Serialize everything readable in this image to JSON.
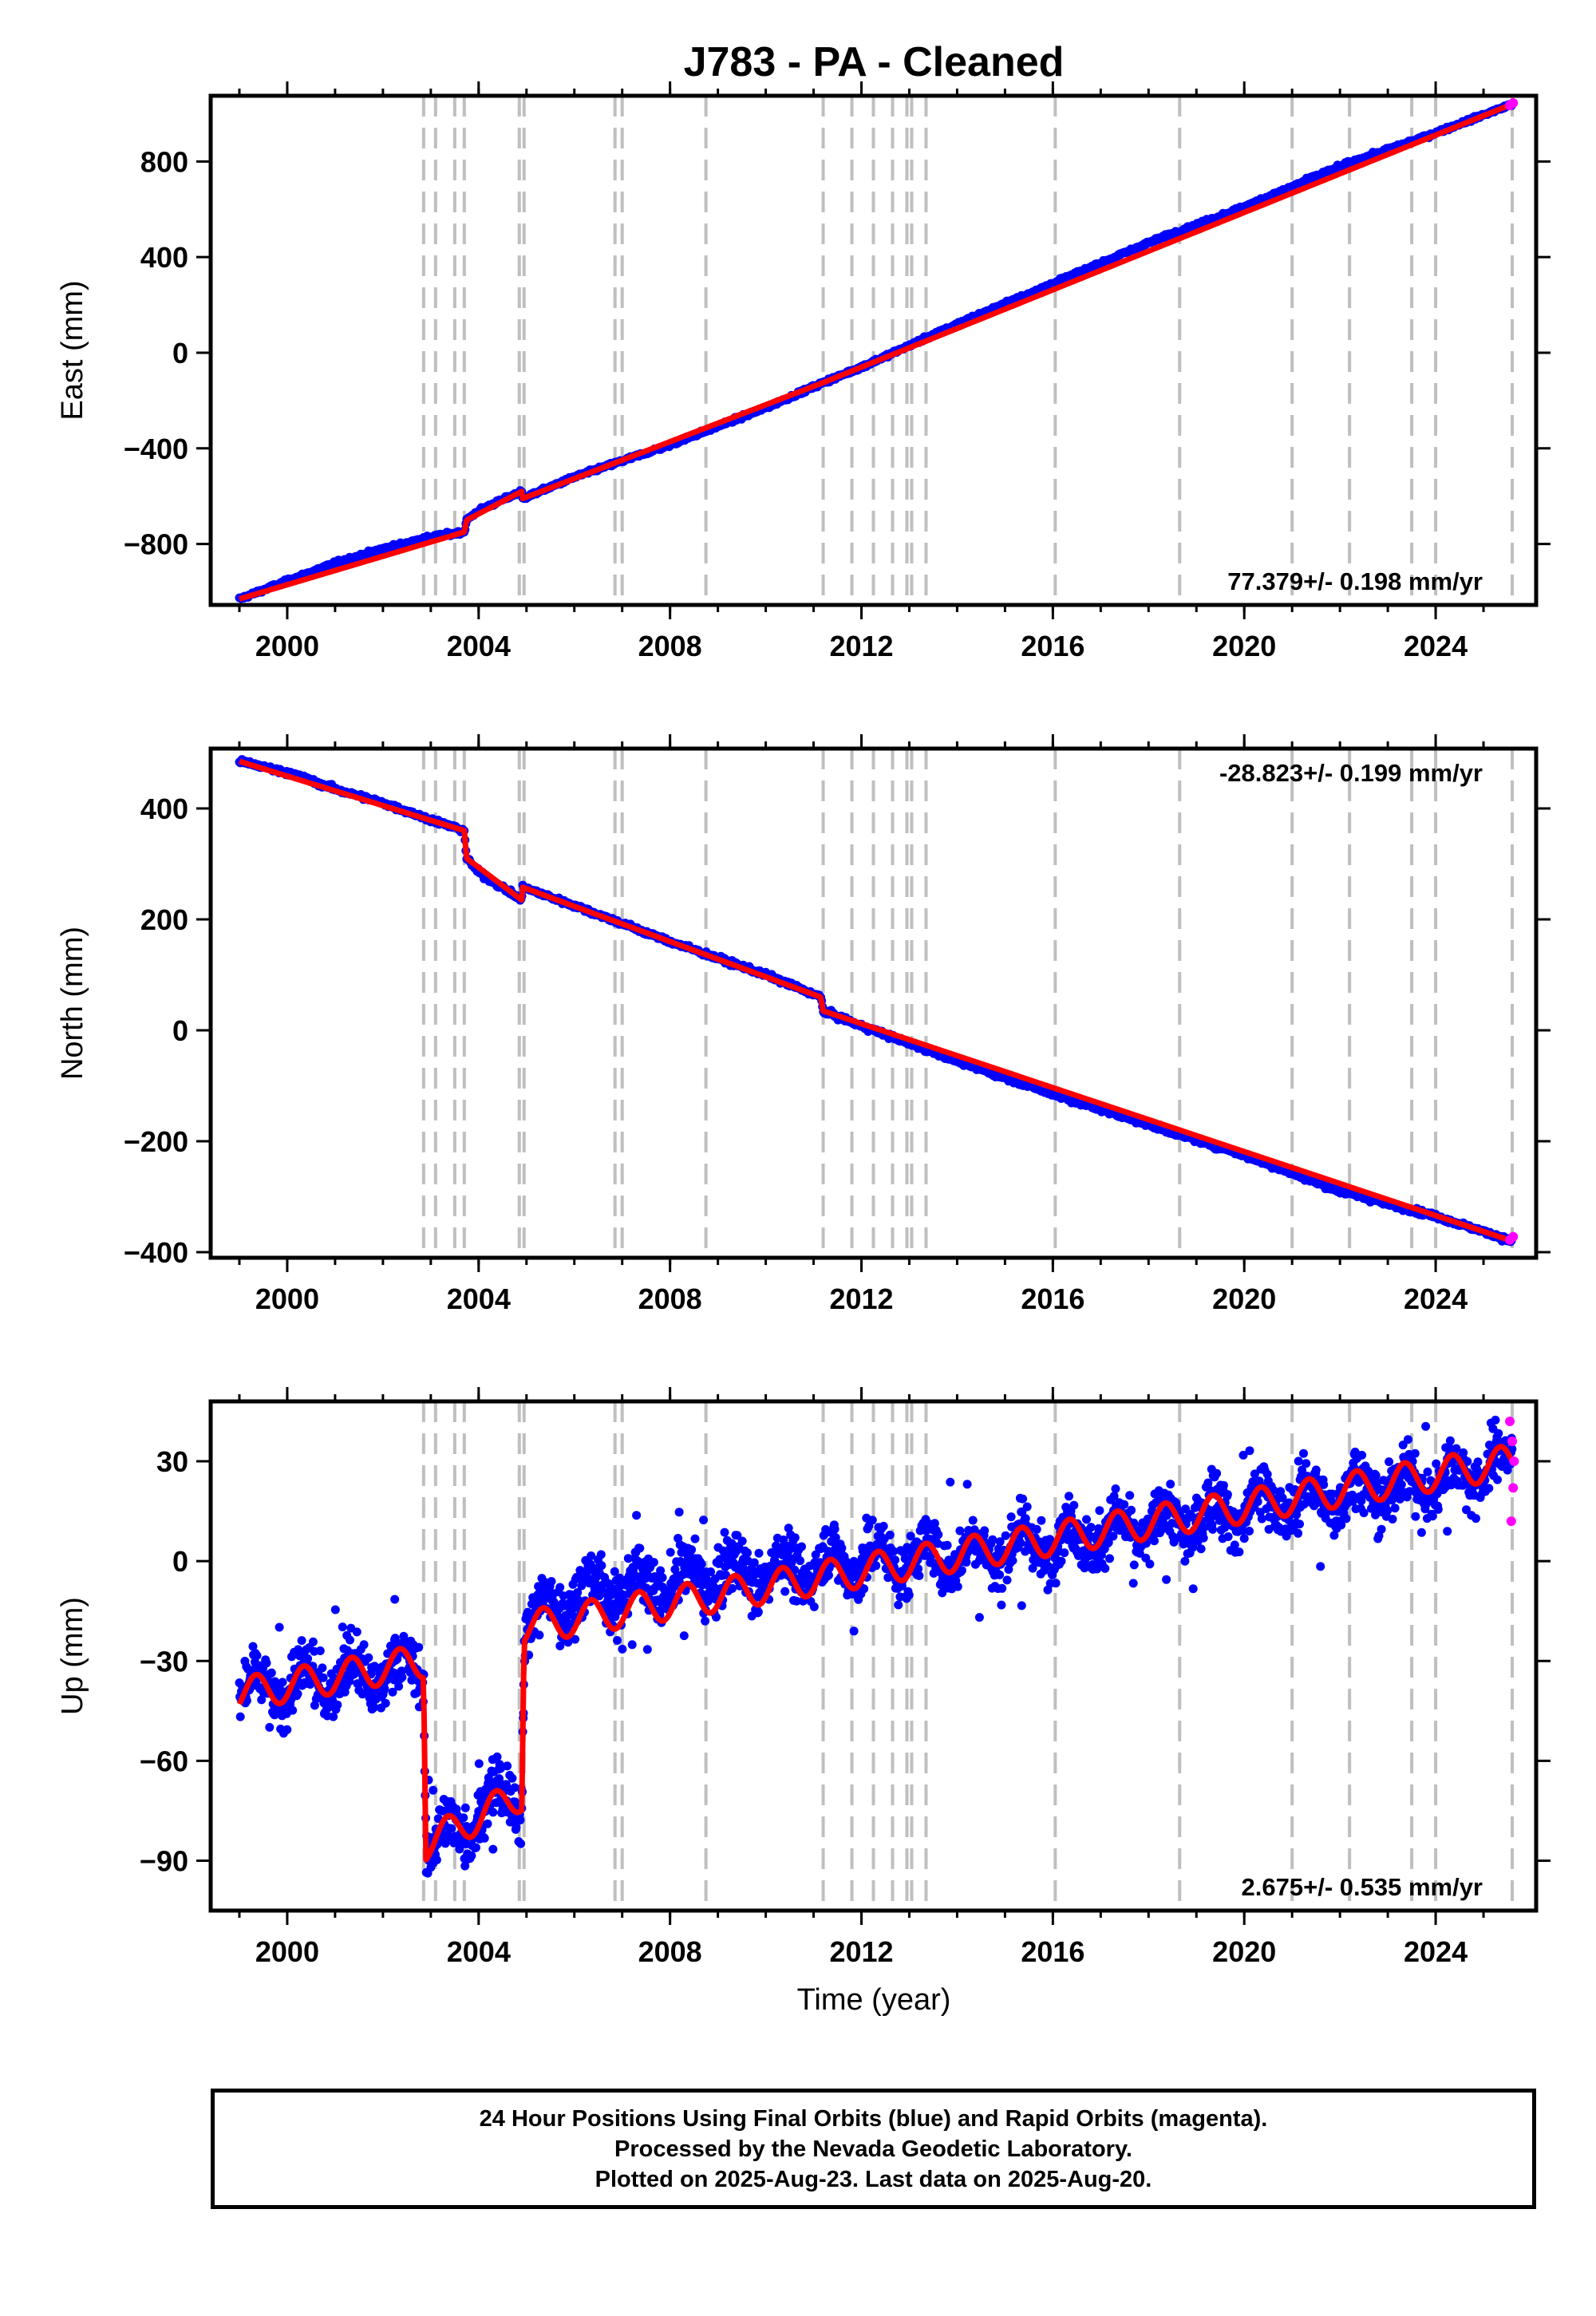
{
  "title": "J783  - PA - Cleaned",
  "xlabel": "Time (year)",
  "footer": {
    "line1": "24 Hour Positions Using Final Orbits (blue) and Rapid Orbits (magenta).",
    "line2": "Processed by the Nevada Geodetic Laboratory.",
    "line3": "Plotted on 2025-Aug-23. Last data on 2025-Aug-20."
  },
  "colors": {
    "final_orbits": "#0000ff",
    "rapid_orbits": "#ff00ff",
    "model": "#ff0000",
    "event_lines": "#bfbfbf"
  },
  "chart_data": [
    {
      "type": "scatter",
      "panel": "east",
      "ylabel": "East (mm)",
      "rate_label": "77.379+/- 0.198 mm/yr",
      "xlim": [
        1998.4,
        2026.1
      ],
      "ylim": [
        -1055,
        1075
      ],
      "yticks": [
        -800,
        -400,
        0,
        400,
        800
      ],
      "xticks": [
        2000,
        2004,
        2008,
        2012,
        2016,
        2020,
        2024
      ],
      "grid": false,
      "series": [
        {
          "name": "",
          "color": "#0000ff",
          "x": [
            1999.0,
            2000.0,
            2001.0,
            2002.0,
            2003.0,
            2003.7,
            2003.75,
            2004.0,
            2004.9,
            2004.92,
            2006.0,
            2008.0,
            2010.0,
            2011.2,
            2012.0,
            2014.0,
            2016.0,
            2018.0,
            2020.0,
            2022.0,
            2024.0,
            2025.6
          ],
          "y": [
            -1030,
            -955,
            -880,
            -820,
            -770,
            -750,
            -700,
            -660,
            -580,
            -610,
            -520,
            -385,
            -230,
            -125,
            -60,
            120,
            290,
            460,
            610,
            780,
            920,
            1040
          ]
        },
        {
          "name": "",
          "color": "#ff00ff",
          "x": [
            2025.55,
            2025.62
          ],
          "y": [
            1035,
            1045
          ]
        }
      ],
      "model": {
        "x": [
          1999.0,
          2003.7,
          2003.75,
          2004.9,
          2004.92,
          2011.2,
          2025.6
        ],
        "y": [
          -1030,
          -750,
          -700,
          -580,
          -610,
          -125,
          1040
        ]
      }
    },
    {
      "type": "scatter",
      "panel": "north",
      "ylabel": "North (mm)",
      "rate_label": "-28.823+/- 0.199 mm/yr",
      "xlim": [
        1998.4,
        2026.1
      ],
      "ylim": [
        -410,
        508
      ],
      "yticks": [
        -400,
        -200,
        0,
        200,
        400
      ],
      "xticks": [
        2000,
        2004,
        2008,
        2012,
        2016,
        2020,
        2024
      ],
      "grid": false,
      "series": [
        {
          "name": "",
          "color": "#0000ff",
          "x": [
            1999.0,
            2000.0,
            2001.0,
            2002.0,
            2003.0,
            2003.7,
            2003.75,
            2004.0,
            2004.9,
            2004.92,
            2006.0,
            2008.0,
            2010.0,
            2011.15,
            2011.2,
            2012.0,
            2014.0,
            2016.0,
            2018.0,
            2020.0,
            2022.0,
            2024.0,
            2025.6
          ],
          "y": [
            485,
            465,
            435,
            410,
            380,
            360,
            310,
            285,
            235,
            258,
            225,
            160,
            100,
            60,
            35,
            8,
            -55,
            -115,
            -170,
            -225,
            -290,
            -335,
            -380
          ]
        },
        {
          "name": "",
          "color": "#ff00ff",
          "x": [
            2025.55,
            2025.62
          ],
          "y": [
            -378,
            -372
          ]
        }
      ],
      "model": {
        "x": [
          1999.0,
          2003.7,
          2003.75,
          2004.9,
          2004.92,
          2011.15,
          2011.2,
          2025.6
        ],
        "y": [
          485,
          360,
          310,
          235,
          258,
          60,
          35,
          -380
        ]
      }
    },
    {
      "type": "scatter",
      "panel": "up",
      "ylabel": "Up (mm)",
      "rate_label": "2.675+/- 0.535 mm/yr",
      "xlim": [
        1998.4,
        2026.1
      ],
      "ylim": [
        -105,
        48
      ],
      "yticks": [
        -90,
        -60,
        -30,
        0,
        30
      ],
      "xticks": [
        2000,
        2004,
        2008,
        2012,
        2016,
        2020,
        2024
      ],
      "grid": false,
      "series": [
        {
          "name": "",
          "color": "#0000ff",
          "x": [
            1999.0,
            2000.0,
            2001.0,
            2002.0,
            2002.85,
            2002.9,
            2003.5,
            2004.0,
            2004.9,
            2004.95,
            2006.0,
            2008.0,
            2010.0,
            2012.0,
            2014.0,
            2016.0,
            2018.0,
            2020.0,
            2022.0,
            2024.0,
            2025.6
          ],
          "y": [
            -40,
            -38,
            -35,
            -34,
            -30,
            -85,
            -82,
            -75,
            -70,
            -20,
            -10,
            -6,
            -3,
            0,
            2,
            6,
            10,
            16,
            20,
            24,
            30
          ]
        },
        {
          "name": "",
          "color": "#ff00ff",
          "x": [
            2025.55,
            2025.58,
            2025.6,
            2025.62,
            2025.64
          ],
          "y": [
            42,
            12,
            36,
            22,
            30
          ]
        }
      ],
      "model": {
        "x": [
          1999.0,
          2002.85,
          2002.9,
          2004.9,
          2004.95,
          2025.6
        ],
        "y": [
          -40,
          -30,
          -85,
          -70,
          -20,
          30
        ]
      }
    }
  ],
  "event_lines": [
    2002.85,
    2003.1,
    2003.5,
    2003.7,
    2004.85,
    2004.95,
    2006.85,
    2007.0,
    2008.75,
    2011.2,
    2011.8,
    2012.25,
    2012.65,
    2012.95,
    2013.05,
    2013.35,
    2016.05,
    2018.65,
    2021.0,
    2022.2,
    2023.5,
    2024.0,
    2025.6
  ]
}
